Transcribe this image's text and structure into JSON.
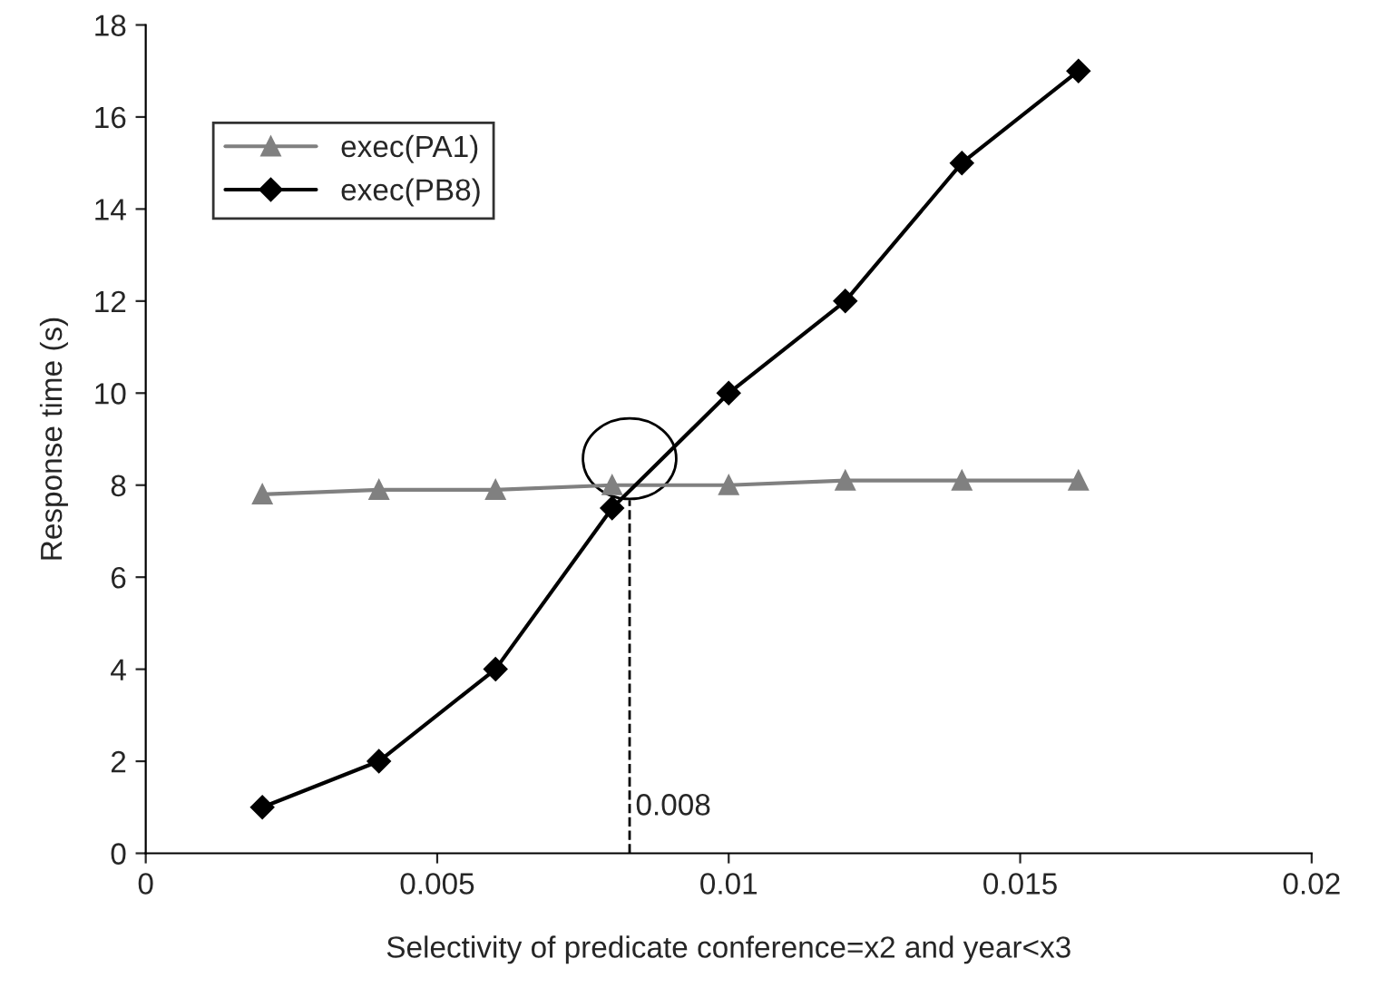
{
  "chart_data": {
    "type": "line",
    "xlabel": "Selectivity of predicate conference=x2 and year<x3",
    "ylabel": "Response time (s)",
    "x": [
      0.002,
      0.004,
      0.006,
      0.008,
      0.01,
      0.012,
      0.014,
      0.016
    ],
    "series": [
      {
        "name": "exec(PA1)",
        "color": "#808080",
        "values": [
          7.8,
          7.9,
          7.9,
          8.0,
          8.0,
          8.1,
          8.1,
          8.1
        ],
        "marker": "triangle"
      },
      {
        "name": "exec(PB8)",
        "color": "#000000",
        "values": [
          1,
          2,
          4,
          7.5,
          10,
          12,
          15,
          17
        ],
        "marker": "diamond"
      }
    ],
    "xlim": [
      0,
      0.02
    ],
    "xticks": [
      0,
      0.005,
      0.01,
      0.015,
      0.02
    ],
    "ylim": [
      0,
      18
    ],
    "yticks": [
      0,
      2,
      4,
      6,
      8,
      10,
      12,
      14,
      16,
      18
    ],
    "ref_lines": [
      {
        "axis": "x",
        "value": 0.0083,
        "label": "0.008",
        "line_style": "dashed",
        "color": "#000000"
      }
    ],
    "grid": false,
    "legend": "top left",
    "line_style": "solid"
  }
}
